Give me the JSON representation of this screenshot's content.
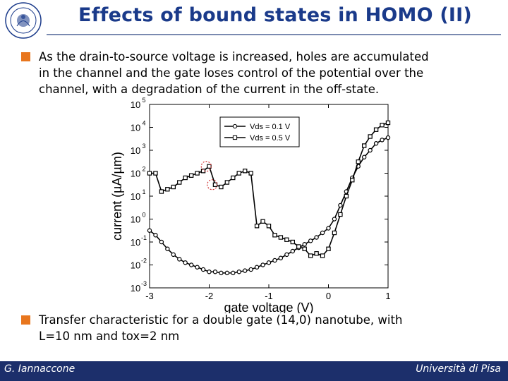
{
  "header": {
    "title": "Effects of bound states in HOMO (II)",
    "logo_icon": "university-seal-icon"
  },
  "bullets": [
    {
      "lines": [
        "As the drain-to-source voltage is increased, holes are accumulated",
        "in the channel and the gate loses control of the potential over the",
        "channel, with a degradation of the current in the off-state."
      ]
    },
    {
      "lines": [
        "Transfer characteristic for a double gate (14,0) nanotube, with",
        "L=10 nm and tox=2 nm"
      ]
    }
  ],
  "colors": {
    "title": "#1a3a8a",
    "bullet": "#e8761e",
    "footer": "#1c2f6b",
    "highlight_circle": "#d03030"
  },
  "chart_data": {
    "type": "line",
    "xlabel": "gate voltage (V)",
    "ylabel": "current (µA/µm)",
    "xlim": [
      -3,
      1
    ],
    "ylim_log10": [
      -3,
      5
    ],
    "yscale": "log",
    "xticks": [
      "-3",
      "-2",
      "-1",
      "0",
      "1"
    ],
    "yticks": [
      "10",
      "10",
      "10",
      "10",
      "10",
      "10",
      "10",
      "10",
      "10"
    ],
    "ytick_exponents": [
      "-3",
      "-2",
      "-1",
      "0",
      "1",
      "2",
      "3",
      "4",
      "5"
    ],
    "legend_position": "top-center",
    "series": [
      {
        "name": "Vds = 0.1 V",
        "marker": "circle",
        "x": [
          -3.0,
          -2.9,
          -2.8,
          -2.7,
          -2.6,
          -2.5,
          -2.4,
          -2.3,
          -2.2,
          -2.1,
          -2.0,
          -1.9,
          -1.8,
          -1.7,
          -1.6,
          -1.5,
          -1.4,
          -1.3,
          -1.2,
          -1.1,
          -1.0,
          -0.9,
          -0.8,
          -0.7,
          -0.6,
          -0.5,
          -0.4,
          -0.3,
          -0.2,
          -0.1,
          0.0,
          0.1,
          0.2,
          0.3,
          0.4,
          0.5,
          0.6,
          0.7,
          0.8,
          0.9,
          1.0
        ],
        "y_log10": [
          -0.5,
          -0.7,
          -1.0,
          -1.3,
          -1.55,
          -1.75,
          -1.9,
          -2.0,
          -2.1,
          -2.2,
          -2.3,
          -2.3,
          -2.35,
          -2.35,
          -2.35,
          -2.3,
          -2.25,
          -2.2,
          -2.1,
          -2.0,
          -1.9,
          -1.8,
          -1.7,
          -1.55,
          -1.4,
          -1.25,
          -1.1,
          -0.95,
          -0.8,
          -0.6,
          -0.4,
          0.0,
          0.6,
          1.2,
          1.8,
          2.3,
          2.7,
          3.0,
          3.3,
          3.45,
          3.55
        ]
      },
      {
        "name": "Vds = 0.5 V",
        "marker": "square",
        "x": [
          -3.0,
          -2.9,
          -2.8,
          -2.7,
          -2.6,
          -2.5,
          -2.4,
          -2.3,
          -2.2,
          -2.1,
          -2.0,
          -1.9,
          -1.8,
          -1.7,
          -1.6,
          -1.5,
          -1.4,
          -1.3,
          -1.2,
          -1.1,
          -1.0,
          -0.9,
          -0.8,
          -0.7,
          -0.6,
          -0.5,
          -0.4,
          -0.3,
          -0.2,
          -0.1,
          0.0,
          0.1,
          0.2,
          0.3,
          0.4,
          0.5,
          0.6,
          0.7,
          0.8,
          0.9,
          1.0
        ],
        "y_log10": [
          2.0,
          2.0,
          1.2,
          1.3,
          1.4,
          1.6,
          1.8,
          1.9,
          2.0,
          2.1,
          2.3,
          1.5,
          1.4,
          1.6,
          1.8,
          2.0,
          2.1,
          2.0,
          -0.3,
          -0.1,
          -0.3,
          -0.7,
          -0.8,
          -0.9,
          -1.0,
          -1.2,
          -1.3,
          -1.6,
          -1.5,
          -1.6,
          -1.3,
          -0.6,
          0.2,
          1.0,
          1.7,
          2.5,
          3.2,
          3.6,
          3.9,
          4.1,
          4.2
        ]
      }
    ],
    "annotations": [
      {
        "type": "highlight-circle",
        "x": -2.05,
        "y_log10": 2.3
      },
      {
        "type": "highlight-circle",
        "x": -1.95,
        "y_log10": 1.5
      }
    ]
  },
  "footer": {
    "author": "G. Iannaccone",
    "institution": "Università di Pisa"
  }
}
